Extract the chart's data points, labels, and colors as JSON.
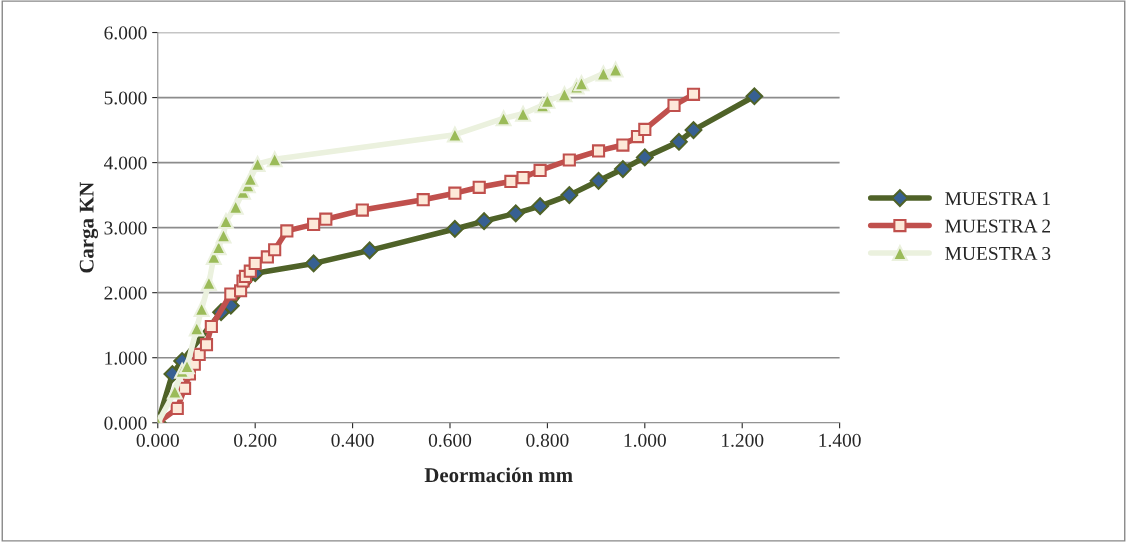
{
  "chart_data": {
    "type": "line",
    "xlabel": "Deormación mm",
    "ylabel": "Carga KN",
    "xlim": [
      0,
      1.4
    ],
    "xticks": [
      {
        "value": 0,
        "label": "0.000"
      },
      {
        "value": 0.2,
        "label": "0.200"
      },
      {
        "value": 0.4,
        "label": "0.400"
      },
      {
        "value": 0.6,
        "label": "0.600"
      },
      {
        "value": 0.8,
        "label": "0.800"
      },
      {
        "value": 1.0,
        "label": "1.000"
      },
      {
        "value": 1.2,
        "label": "1.200"
      },
      {
        "value": 1.4,
        "label": "1.400"
      }
    ],
    "ylim": [
      0,
      6
    ],
    "yticks": [
      {
        "value": 0,
        "label": "0.000"
      },
      {
        "value": 1,
        "label": "1.000"
      },
      {
        "value": 2,
        "label": "2.000"
      },
      {
        "value": 3,
        "label": "3.000"
      },
      {
        "value": 4,
        "label": "4.000"
      },
      {
        "value": 5,
        "label": "5.000"
      },
      {
        "value": 6,
        "label": "6.000"
      }
    ],
    "grid": "y",
    "legend": "right",
    "series": [
      {
        "name": "MUESTRA 1",
        "color": "#4f6228",
        "marker": "diamond",
        "x": [
          0,
          0.03,
          0.05,
          0.13,
          0.15,
          0.2,
          0.32,
          0.435,
          0.61,
          0.67,
          0.735,
          0.785,
          0.845,
          0.905,
          0.955,
          1.0,
          1.07,
          1.1,
          1.225
        ],
        "values": [
          0,
          0.75,
          0.95,
          1.7,
          1.8,
          2.3,
          2.45,
          2.65,
          2.98,
          3.1,
          3.22,
          3.33,
          3.5,
          3.72,
          3.9,
          4.08,
          4.32,
          4.5,
          5.02
        ]
      },
      {
        "name": "MUESTRA 2",
        "color": "#c0504d",
        "marker": "square",
        "x": [
          0,
          0.04,
          0.055,
          0.065,
          0.075,
          0.085,
          0.1,
          0.11,
          0.15,
          0.17,
          0.175,
          0.18,
          0.19,
          0.2,
          0.225,
          0.24,
          0.265,
          0.32,
          0.345,
          0.42,
          0.545,
          0.61,
          0.66,
          0.725,
          0.75,
          0.785,
          0.845,
          0.905,
          0.955,
          0.985,
          1.0,
          1.06,
          1.1
        ],
        "values": [
          0,
          0.22,
          0.53,
          0.75,
          0.9,
          1.05,
          1.2,
          1.48,
          1.98,
          2.03,
          2.18,
          2.25,
          2.33,
          2.45,
          2.55,
          2.66,
          2.95,
          3.05,
          3.13,
          3.27,
          3.43,
          3.53,
          3.62,
          3.71,
          3.77,
          3.88,
          4.04,
          4.18,
          4.27,
          4.4,
          4.51,
          4.88,
          5.05
        ]
      },
      {
        "name": "MUESTRA 3",
        "color": "#ebf1de",
        "marker": "triangle",
        "x": [
          0,
          0.035,
          0.05,
          0.06,
          0.08,
          0.09,
          0.105,
          0.115,
          0.125,
          0.135,
          0.14,
          0.16,
          0.175,
          0.185,
          0.19,
          0.205,
          0.24,
          0.61,
          0.71,
          0.75,
          0.79,
          0.8,
          0.835,
          0.86,
          0.87,
          0.915,
          0.94
        ],
        "values": [
          0,
          0.48,
          0.8,
          0.87,
          1.45,
          1.75,
          2.15,
          2.55,
          2.7,
          2.88,
          3.1,
          3.32,
          3.55,
          3.65,
          3.75,
          3.98,
          4.05,
          4.43,
          4.68,
          4.75,
          4.88,
          4.95,
          5.05,
          5.17,
          5.22,
          5.37,
          5.43
        ]
      }
    ]
  }
}
